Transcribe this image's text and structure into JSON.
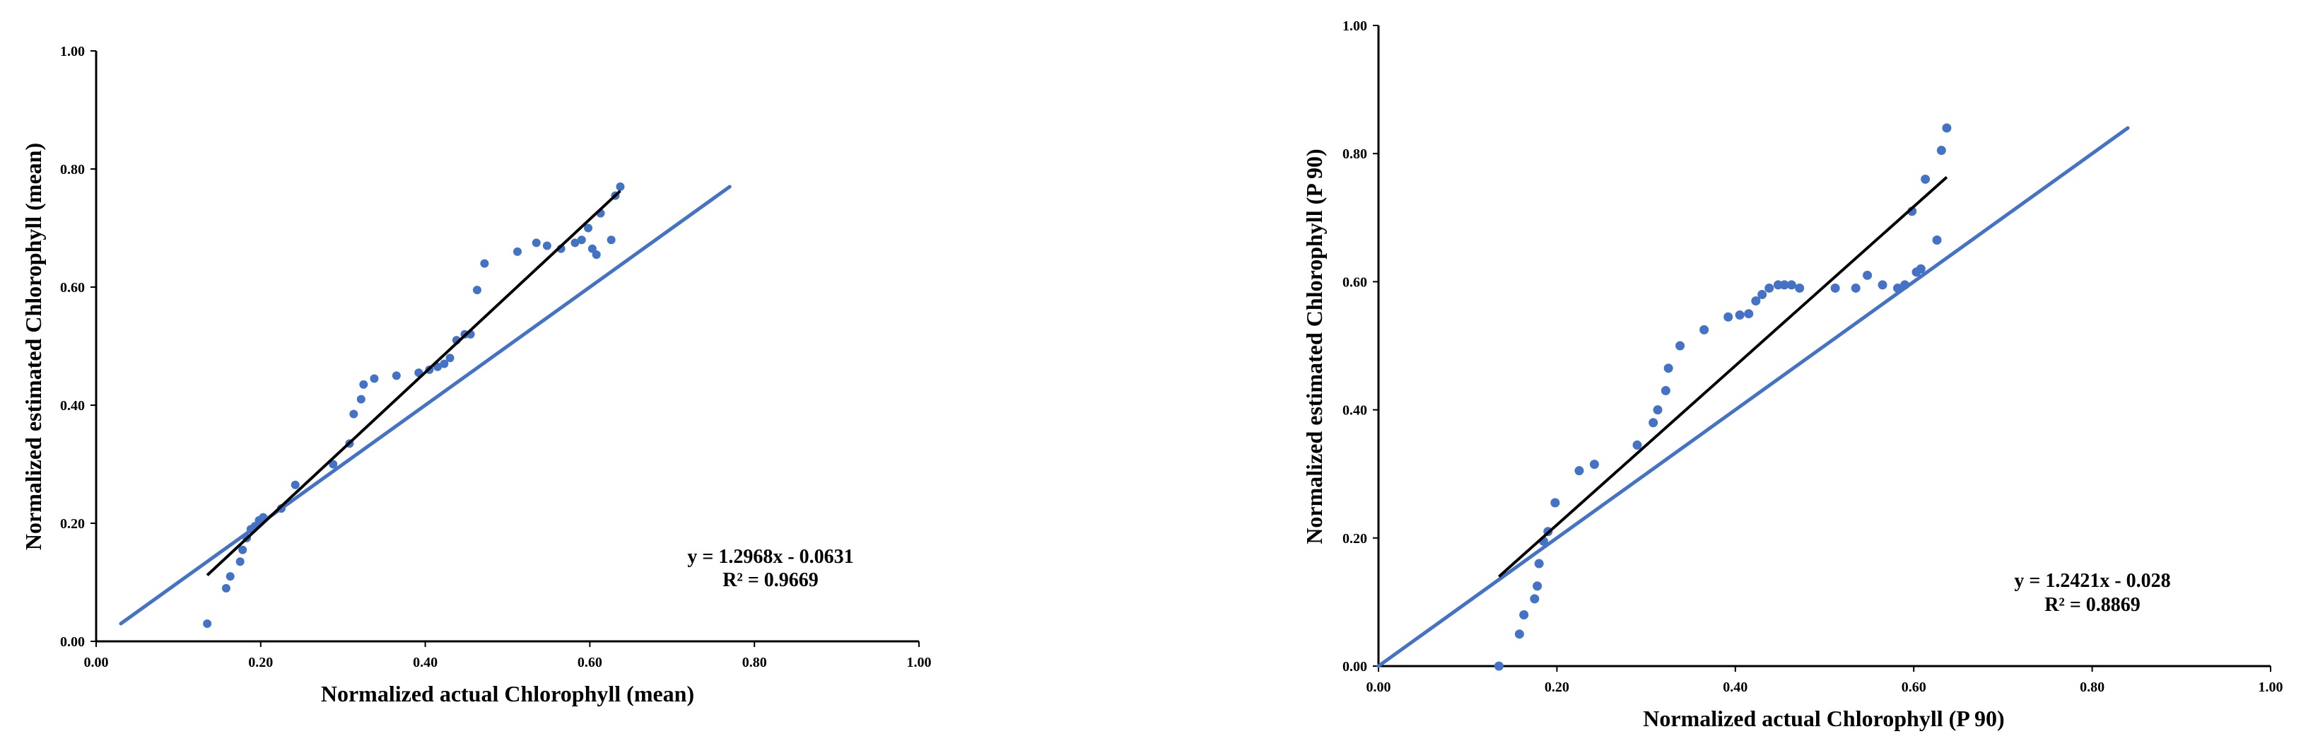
{
  "chart_data": [
    {
      "type": "scatter",
      "xlabel": "Normalized actual Chlorophyll (mean)",
      "ylabel": "Normalized estimated Chlorophyll  (mean)",
      "xlim": [
        0,
        1
      ],
      "ylim": [
        0,
        1
      ],
      "x_ticks": [
        "0.00",
        "0.20",
        "0.40",
        "0.60",
        "0.80",
        "1.00"
      ],
      "y_ticks": [
        "0.00",
        "0.20",
        "0.40",
        "0.60",
        "0.80",
        "1.00"
      ],
      "grid": false,
      "colors": {
        "points": "#4472C4",
        "one_to_one": "#4472C4",
        "trendline": "#000000"
      },
      "series": [
        {
          "x": [
            0.135,
            0.158,
            0.163,
            0.175,
            0.178,
            0.183,
            0.188,
            0.193,
            0.198,
            0.203,
            0.225,
            0.242,
            0.288,
            0.308,
            0.313,
            0.322,
            0.325,
            0.338,
            0.365,
            0.392,
            0.405,
            0.415,
            0.423,
            0.43,
            0.438,
            0.448,
            0.455,
            0.463,
            0.472,
            0.512,
            0.535,
            0.548,
            0.565,
            0.582,
            0.59,
            0.598,
            0.603,
            0.608,
            0.613,
            0.626,
            0.631,
            0.637
          ],
          "y": [
            0.03,
            0.09,
            0.11,
            0.135,
            0.155,
            0.175,
            0.19,
            0.195,
            0.205,
            0.21,
            0.225,
            0.265,
            0.3,
            0.335,
            0.385,
            0.41,
            0.435,
            0.445,
            0.45,
            0.455,
            0.46,
            0.465,
            0.47,
            0.48,
            0.51,
            0.52,
            0.52,
            0.595,
            0.64,
            0.66,
            0.675,
            0.67,
            0.665,
            0.675,
            0.68,
            0.7,
            0.665,
            0.655,
            0.725,
            0.68,
            0.755,
            0.77
          ]
        }
      ],
      "one_to_one_line": {
        "x": [
          0.03,
          0.77
        ],
        "y": [
          0.03,
          0.77
        ]
      },
      "trendline": {
        "slope": 1.2968,
        "intercept": -0.0631,
        "x_range": [
          0.135,
          0.637
        ]
      },
      "annotations": [
        "y = 1.2968x - 0.0631",
        "R² = 0.9669"
      ]
    },
    {
      "type": "scatter",
      "xlabel": "Normalized actual Chlorophyll (P 90)",
      "ylabel": "Normalized estimated Chlorophyll  (P 90)",
      "xlim": [
        0,
        1
      ],
      "ylim": [
        0,
        1
      ],
      "x_ticks": [
        "0.00",
        "0.20",
        "0.40",
        "0.60",
        "0.80",
        "1.00"
      ],
      "y_ticks": [
        "0.00",
        "0.20",
        "0.40",
        "0.60",
        "0.80",
        "1.00"
      ],
      "grid": false,
      "colors": {
        "points": "#4472C4",
        "one_to_one": "#4472C4",
        "trendline": "#000000"
      },
      "series": [
        {
          "x": [
            0.135,
            0.158,
            0.163,
            0.175,
            0.178,
            0.18,
            0.185,
            0.19,
            0.198,
            0.225,
            0.242,
            0.29,
            0.308,
            0.313,
            0.322,
            0.325,
            0.338,
            0.365,
            0.392,
            0.405,
            0.415,
            0.423,
            0.43,
            0.438,
            0.448,
            0.455,
            0.463,
            0.472,
            0.512,
            0.535,
            0.548,
            0.565,
            0.582,
            0.59,
            0.598,
            0.603,
            0.608,
            0.613,
            0.626,
            0.631,
            0.637
          ],
          "y": [
            0.0,
            0.05,
            0.08,
            0.105,
            0.125,
            0.16,
            0.195,
            0.21,
            0.255,
            0.305,
            0.315,
            0.345,
            0.38,
            0.4,
            0.43,
            0.465,
            0.5,
            0.525,
            0.545,
            0.548,
            0.55,
            0.57,
            0.58,
            0.59,
            0.595,
            0.595,
            0.595,
            0.59,
            0.59,
            0.59,
            0.61,
            0.595,
            0.59,
            0.595,
            0.71,
            0.615,
            0.62,
            0.76,
            0.665,
            0.805,
            0.84
          ]
        }
      ],
      "one_to_one_line": {
        "x": [
          0.0,
          0.84
        ],
        "y": [
          0.0,
          0.84
        ]
      },
      "trendline": {
        "slope": 1.2421,
        "intercept": -0.028,
        "x_range": [
          0.135,
          0.637
        ]
      },
      "annotations": [
        "y = 1.2421x - 0.028",
        "R² = 0.8869"
      ]
    }
  ]
}
